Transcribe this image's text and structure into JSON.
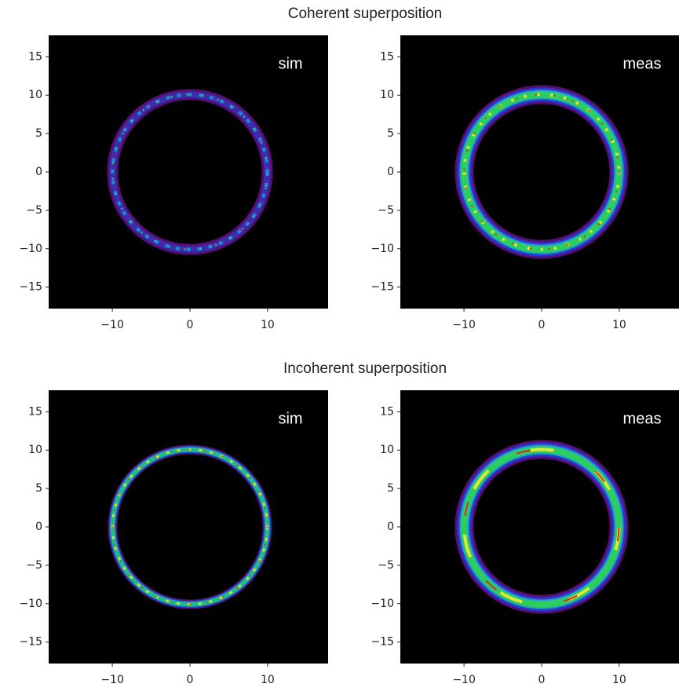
{
  "chart_data": [
    {
      "type": "image",
      "title": "Coherent superposition",
      "label": "sim",
      "xlim": [
        -18.2,
        17.8
      ],
      "ylim": [
        -17.8,
        17.8
      ],
      "xticks": [
        {
          "value": -10,
          "label": "−10"
        },
        0,
        10
      ],
      "yticks": [
        15,
        10,
        5,
        0,
        {
          "value": -5,
          "label": "−5"
        },
        {
          "value": -10,
          "label": "−10"
        },
        {
          "value": -15,
          "label": "−15"
        }
      ]
    },
    {
      "type": "image",
      "label": "meas",
      "xlim": [
        -18.2,
        17.8
      ],
      "ylim": [
        -17.8,
        17.8
      ],
      "xticks": [
        {
          "value": -10,
          "label": "−10"
        },
        0,
        10
      ],
      "yticks": [
        15,
        10,
        5,
        0,
        {
          "value": -5,
          "label": "−5"
        },
        {
          "value": -10,
          "label": "−10"
        },
        {
          "value": -15,
          "label": "−15"
        }
      ]
    },
    {
      "type": "image",
      "title": "Incoherent superposition",
      "label": "sim",
      "xlim": [
        -18.2,
        17.8
      ],
      "ylim": [
        -17.8,
        17.8
      ],
      "xticks": [
        {
          "value": -10,
          "label": "−10"
        },
        0,
        10
      ],
      "yticks": [
        15,
        10,
        5,
        0,
        {
          "value": -5,
          "label": "−5"
        },
        {
          "value": -10,
          "label": "−10"
        },
        {
          "value": -15,
          "label": "−15"
        }
      ]
    },
    {
      "type": "image",
      "label": "meas",
      "xlim": [
        -18.2,
        17.8
      ],
      "ylim": [
        -17.8,
        17.8
      ],
      "xticks": [
        {
          "value": -10,
          "label": "−10"
        },
        0,
        10
      ],
      "yticks": [
        15,
        10,
        5,
        0,
        {
          "value": -5,
          "label": "−5"
        },
        {
          "value": -10,
          "label": "−10"
        },
        {
          "value": -15,
          "label": "−15"
        }
      ]
    }
  ]
}
